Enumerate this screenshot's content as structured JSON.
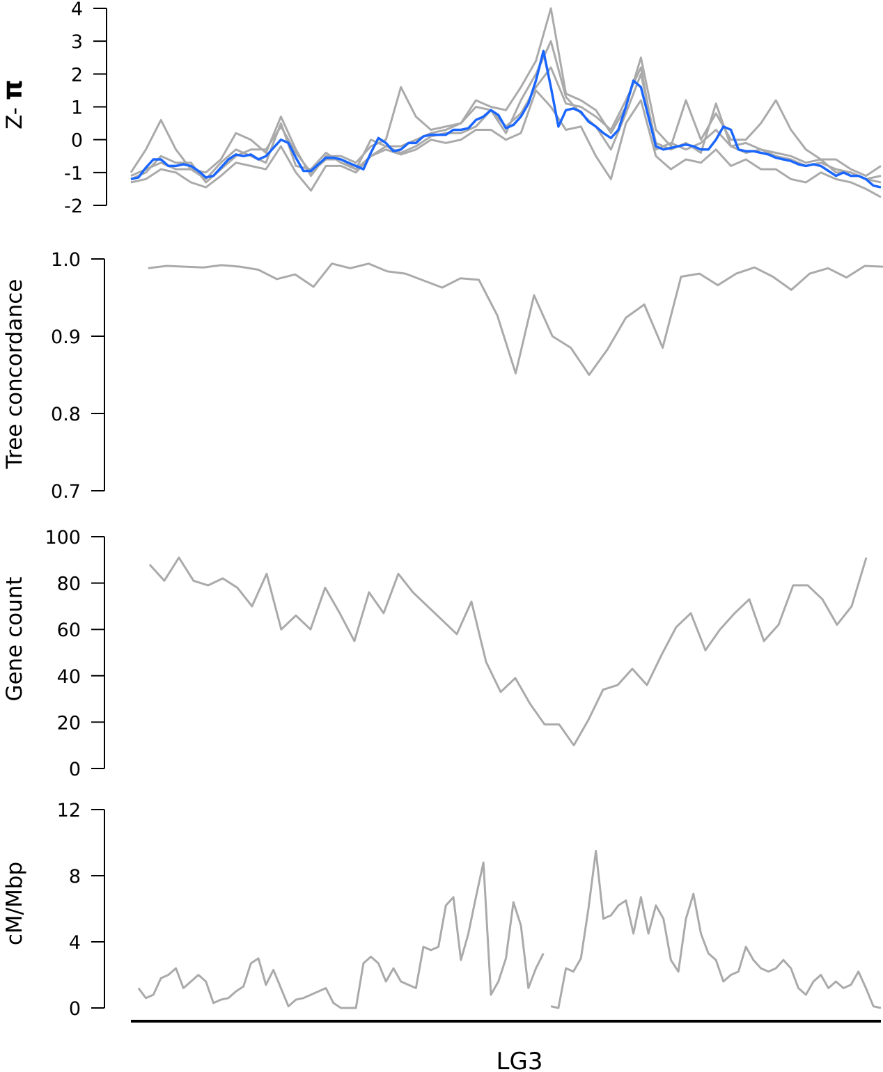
{
  "chart_data": [
    {
      "type": "line",
      "panel": "z-pi",
      "ylabel_prefix": "Z- ",
      "ylabel_symbol": "π",
      "ylim": [
        -2,
        4
      ],
      "yticks": [
        4,
        3,
        2,
        1,
        0,
        -1,
        -2
      ],
      "ytick_labels": [
        "4",
        "3",
        "2",
        "1",
        "0",
        "-1",
        "-2"
      ],
      "x_units": "position along LG3 (%)",
      "colors": {
        "mean": "#1a66ff",
        "replicates": "#aaaaaa"
      },
      "series": [
        {
          "name": "replicate-a",
          "color": "#aaaaaa",
          "x_start": 0,
          "x_step": 2,
          "values": [
            -1.0,
            -0.3,
            0.6,
            -0.3,
            -0.9,
            -1.0,
            -0.6,
            0.2,
            0.0,
            -0.4,
            0.7,
            -0.3,
            -1.1,
            -0.5,
            -0.5,
            -0.7,
            -0.2,
            0.0,
            1.6,
            0.7,
            0.3,
            0.4,
            0.5,
            1.2,
            1.0,
            0.9,
            1.6,
            2.4,
            4.0,
            1.4,
            1.2,
            0.9,
            0.2,
            1.0,
            2.5,
            0.3,
            -0.2,
            1.2,
            0.0,
            0.8,
            0.0,
            0.0,
            0.5,
            1.2,
            0.3,
            -0.3,
            -0.6,
            -0.6,
            -0.9,
            -1.1,
            -0.8
          ]
        },
        {
          "name": "replicate-b",
          "color": "#aaaaaa",
          "x_start": 0,
          "x_step": 2,
          "values": [
            -1.3,
            -1.2,
            -0.9,
            -1.0,
            -1.3,
            -1.45,
            -1.1,
            -0.7,
            -0.8,
            -0.9,
            -0.2,
            -1.0,
            -1.55,
            -0.8,
            -0.8,
            -1.0,
            -0.5,
            -0.3,
            -0.45,
            -0.3,
            0.0,
            -0.1,
            0.0,
            0.3,
            0.3,
            0.0,
            0.2,
            1.5,
            1.0,
            0.3,
            0.4,
            -0.5,
            -1.2,
            0.5,
            1.2,
            -0.5,
            -0.9,
            -0.6,
            -0.7,
            -0.3,
            -0.8,
            -0.6,
            -0.9,
            -0.9,
            -1.2,
            -1.3,
            -1.0,
            -1.2,
            -1.3,
            -1.5,
            -1.75
          ]
        },
        {
          "name": "replicate-c",
          "color": "#aaaaaa",
          "x_start": 0,
          "x_step": 2,
          "values": [
            -1.1,
            -0.9,
            -0.7,
            -0.9,
            -0.9,
            -1.2,
            -0.7,
            -0.3,
            -0.5,
            -0.7,
            0.5,
            -0.8,
            -0.9,
            -0.4,
            -0.7,
            -0.9,
            0.0,
            -0.2,
            -0.2,
            0.0,
            0.2,
            0.3,
            0.5,
            1.0,
            0.9,
            0.2,
            1.2,
            2.0,
            3.0,
            1.3,
            0.8,
            0.4,
            -0.3,
            0.8,
            2.0,
            -0.1,
            -0.3,
            -0.1,
            -0.4,
            1.1,
            -0.2,
            -0.4,
            -0.3,
            -0.4,
            -0.5,
            -0.7,
            -0.6,
            -1.0,
            -1.0,
            -1.2,
            -1.1
          ]
        },
        {
          "name": "replicate-d",
          "color": "#aaaaaa",
          "x_start": 0,
          "x_step": 2,
          "values": [
            -1.2,
            -1.0,
            -0.5,
            -0.7,
            -0.7,
            -1.3,
            -0.9,
            -0.5,
            -0.3,
            -0.3,
            0.4,
            -0.4,
            -1.0,
            -0.6,
            -0.6,
            -0.9,
            -0.5,
            -0.2,
            -0.4,
            -0.2,
            0.1,
            0.2,
            0.2,
            0.4,
            0.9,
            0.4,
            0.8,
            1.6,
            2.2,
            1.1,
            1.0,
            0.7,
            0.3,
            1.2,
            2.2,
            -0.3,
            -0.1,
            -0.3,
            -0.1,
            0.3,
            -0.2,
            -0.1,
            -0.3,
            -0.5,
            -0.6,
            -0.8,
            -0.7,
            -0.9,
            -1.0,
            -1.2,
            -1.3
          ]
        },
        {
          "name": "mean",
          "color": "#1a66ff",
          "x_start": 0,
          "x_step": 1,
          "values": [
            -1.2,
            -1.15,
            -0.85,
            -0.6,
            -0.6,
            -0.8,
            -0.8,
            -0.75,
            -0.8,
            -0.95,
            -1.15,
            -1.1,
            -0.85,
            -0.6,
            -0.45,
            -0.5,
            -0.45,
            -0.6,
            -0.5,
            -0.25,
            0.0,
            -0.1,
            -0.55,
            -0.95,
            -0.95,
            -0.75,
            -0.55,
            -0.55,
            -0.6,
            -0.7,
            -0.8,
            -0.9,
            -0.4,
            0.05,
            -0.1,
            -0.35,
            -0.3,
            -0.1,
            -0.1,
            0.1,
            0.15,
            0.15,
            0.15,
            0.3,
            0.3,
            0.35,
            0.6,
            0.7,
            0.9,
            0.75,
            0.35,
            0.45,
            0.7,
            1.1,
            1.8,
            2.7,
            1.6,
            0.4,
            0.9,
            0.95,
            0.85,
            0.55,
            0.4,
            0.2,
            0.05,
            0.3,
            1.0,
            1.8,
            1.6,
            0.7,
            -0.2,
            -0.3,
            -0.25,
            -0.2,
            -0.15,
            -0.2,
            -0.3,
            -0.3,
            0.0,
            0.4,
            0.3,
            -0.3,
            -0.35,
            -0.35,
            -0.4,
            -0.45,
            -0.55,
            -0.6,
            -0.65,
            -0.75,
            -0.8,
            -0.75,
            -0.8,
            -0.95,
            -1.1,
            -1.0,
            -1.1,
            -1.1,
            -1.2,
            -1.4,
            -1.45
          ]
        }
      ]
    },
    {
      "type": "line",
      "panel": "tree-concordance",
      "ylabel": "Tree concordance",
      "ylim": [
        0.7,
        1.0
      ],
      "yticks": [
        1.0,
        0.9,
        0.8,
        0.7
      ],
      "ytick_labels": [
        "1.0",
        "0.9",
        "0.8",
        "0.7"
      ],
      "series": [
        {
          "name": "tree-concordance",
          "color": "#aaaaaa",
          "x_start": 2.3,
          "x_step": 2.45,
          "values": [
            0.988,
            0.991,
            0.99,
            0.989,
            0.992,
            0.99,
            0.986,
            0.974,
            0.98,
            0.964,
            0.994,
            0.988,
            0.994,
            0.984,
            0.981,
            0.972,
            0.963,
            0.975,
            0.973,
            0.927,
            0.852,
            0.953,
            0.9,
            0.885,
            0.85,
            0.883,
            0.924,
            0.941,
            0.885,
            0.977,
            0.981,
            0.966,
            0.981,
            0.989,
            0.977,
            0.96,
            0.981,
            0.988,
            0.976,
            0.991,
            0.99
          ]
        }
      ]
    },
    {
      "type": "line",
      "panel": "gene-count",
      "ylabel": "Gene count",
      "ylim": [
        0,
        100
      ],
      "yticks": [
        100,
        80,
        60,
        40,
        20,
        0
      ],
      "ytick_labels": [
        "100",
        "80",
        "60",
        "40",
        "20",
        "0"
      ],
      "series": [
        {
          "name": "gene-count",
          "color": "#aaaaaa",
          "x_start": 2.5,
          "x_step": 1.95,
          "values": [
            88,
            81,
            91,
            81,
            79,
            82,
            78,
            70,
            84,
            60,
            66,
            60,
            78,
            67,
            55,
            76,
            67,
            84,
            76,
            70,
            64,
            58,
            72,
            46,
            33,
            39,
            28,
            19,
            19,
            10,
            21,
            34,
            36,
            43,
            36,
            49,
            61,
            67,
            51,
            60,
            67,
            73,
            55,
            62,
            79,
            79,
            73,
            62,
            70,
            91
          ]
        }
      ]
    },
    {
      "type": "line",
      "panel": "recombination-rate",
      "ylabel": "cM/Mbp",
      "ylim": [
        0,
        12
      ],
      "yticks": [
        12,
        8,
        4,
        0
      ],
      "ytick_labels": [
        "12",
        "8",
        "4",
        "0"
      ],
      "series": [
        {
          "name": "cm-mbp-segment-1",
          "color": "#aaaaaa",
          "x_start": 1,
          "x_step": 1,
          "values": [
            1.2,
            0.6,
            0.8,
            1.8,
            2.0,
            2.4,
            1.2,
            1.6,
            2.0,
            1.6,
            0.3,
            0.5,
            0.6,
            1.0,
            1.3,
            2.7,
            3.0,
            1.4,
            2.3,
            1.2,
            0.1,
            0.5,
            0.6,
            0.8,
            1.0,
            1.2,
            0.3,
            0,
            0,
            0,
            2.7,
            3.1,
            2.7,
            1.6,
            2.4,
            1.6,
            1.4,
            1.2,
            3.7,
            3.5,
            3.7,
            6.2,
            6.7,
            2.9,
            4.5,
            6.7,
            8.8,
            0.8,
            1.6,
            3.0,
            6.4,
            5.0,
            1.2,
            2.4,
            3.3
          ]
        },
        {
          "name": "cm-mbp-segment-2",
          "color": "#aaaaaa",
          "x_start": 56,
          "x_step": 1,
          "values": [
            0.1,
            0,
            2.4,
            2.2,
            3.0,
            6.0,
            9.5,
            5.4,
            5.6,
            6.2,
            6.5,
            4.5,
            6.7,
            4.5,
            6.2,
            5.4,
            2.9,
            2.2,
            5.4,
            6.9,
            4.5,
            3.3,
            2.9,
            1.6,
            2.0,
            2.2,
            3.7,
            2.9,
            2.4,
            2.2,
            2.4,
            2.9,
            2.4,
            1.2,
            0.8,
            1.6,
            2.0,
            1.2,
            1.6,
            1.2,
            1.4,
            2.2,
            1.2,
            0.1,
            0
          ]
        }
      ]
    }
  ],
  "xlabel": "LG3"
}
